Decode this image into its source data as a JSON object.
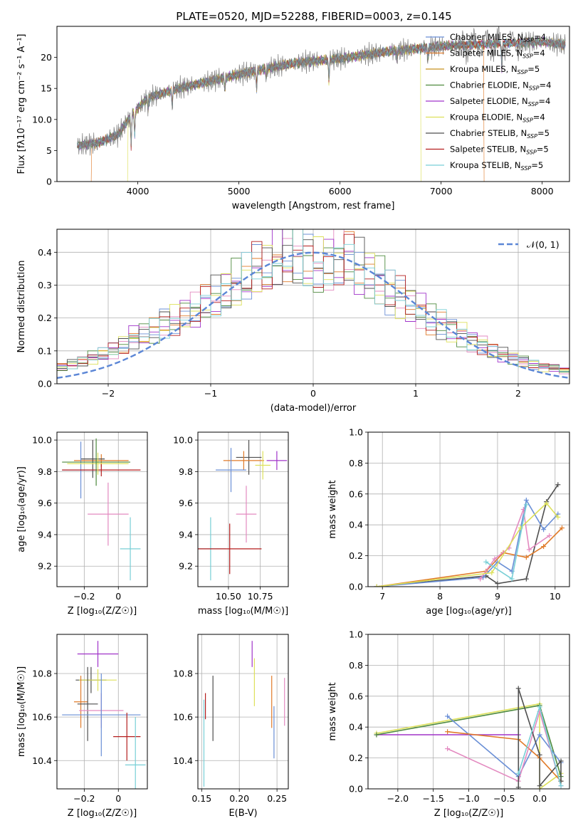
{
  "figure_title": "PLATE=0520, MJD=52288, FIBERID=0003, z=0.145",
  "colors": {
    "Chabrier MILES": "#6a8fd6",
    "Salpeter MILES": "#e07b2a",
    "Kroupa MILES": "#c8901e",
    "Chabrier ELODIE": "#4e8a3e",
    "Salpeter ELODIE": "#a033c9",
    "Kroupa ELODIE": "#dde05a",
    "Chabrier STELIB": "#4f4f4f",
    "Salpeter STELIB": "#b51e1e",
    "Kroupa STELIB": "#78cfd6",
    "pink": "#e38ac0"
  },
  "chart_data": [
    {
      "id": "spectrum",
      "type": "line",
      "xlabel": "wavelength [Angstrom, rest frame]",
      "ylabel": "Flux [fλ10⁻¹⁷ erg cm⁻² s⁻¹ A⁻¹]",
      "xlim": [
        3200,
        8270
      ],
      "ylim": [
        0,
        25
      ],
      "xticks": [
        4000,
        5000,
        6000,
        7000,
        8000
      ],
      "yticks": [
        0,
        5,
        10,
        15,
        20
      ],
      "grid": false,
      "legend_position": "upper right",
      "legend": [
        {
          "name": "Chabrier MILES",
          "nssp": "4"
        },
        {
          "name": "Salpeter MILES",
          "nssp": "4"
        },
        {
          "name": "Kroupa MILES",
          "nssp": "5"
        },
        {
          "name": "Chabrier ELODIE",
          "nssp": "4"
        },
        {
          "name": "Salpeter ELODIE",
          "nssp": "4"
        },
        {
          "name": "Kroupa ELODIE",
          "nssp": "4"
        },
        {
          "name": "Chabrier STELIB",
          "nssp": "5"
        },
        {
          "name": "Salpeter STELIB",
          "nssp": "5"
        },
        {
          "name": "Kroupa STELIB",
          "nssp": "5"
        }
      ],
      "continuum": [
        [
          3400,
          5.8
        ],
        [
          3600,
          6.2
        ],
        [
          3800,
          7.5
        ],
        [
          3950,
          11
        ],
        [
          4100,
          13.5
        ],
        [
          4400,
          15
        ],
        [
          4800,
          16.5
        ],
        [
          5200,
          18
        ],
        [
          5600,
          19.2
        ],
        [
          6000,
          19.8
        ],
        [
          6500,
          21
        ],
        [
          7000,
          21.8
        ],
        [
          7500,
          22.2
        ],
        [
          8000,
          22.5
        ],
        [
          8230,
          22
        ]
      ],
      "model_cutoffs": [
        {
          "series": "Salpeter MILES",
          "x": [
            3540,
            7420
          ]
        },
        {
          "series": "Kroupa ELODIE",
          "x": [
            3900,
            6800
          ]
        }
      ]
    },
    {
      "id": "residual_hist",
      "type": "line",
      "xlabel": "(data-model)/error",
      "ylabel": "Normed distribution",
      "xlim": [
        -2.5,
        2.5
      ],
      "ylim": [
        0,
        0.47
      ],
      "xticks": [
        -2,
        -1,
        0,
        1,
        2
      ],
      "yticks": [
        0.0,
        0.1,
        0.2,
        0.3,
        0.4
      ],
      "grid": true,
      "legend_position": "upper right",
      "reference_label": "𝒩(0, 1)",
      "bin_width": 0.1,
      "example_bins": {
        "x": [
          -2.5,
          -2.4,
          -2.3,
          -2.2,
          -2.1,
          -2.0,
          -1.9,
          -1.8,
          -1.7,
          -1.6,
          -1.5,
          -1.4,
          -1.3,
          -1.2,
          -1.1,
          -1.0,
          -0.9,
          -0.8,
          -0.7,
          -0.6,
          -0.5,
          -0.4,
          -0.3,
          -0.2,
          -0.1,
          0.0,
          0.1,
          0.2,
          0.3,
          0.4,
          0.5,
          0.6,
          0.7,
          0.8,
          0.9,
          1.0,
          1.1,
          1.2,
          1.3,
          1.4,
          1.5,
          1.6,
          1.7,
          1.8,
          1.9,
          2.0,
          2.1,
          2.2,
          2.3,
          2.4
        ],
        "y": [
          0.05,
          0.06,
          0.07,
          0.08,
          0.09,
          0.1,
          0.12,
          0.14,
          0.15,
          0.16,
          0.18,
          0.19,
          0.21,
          0.22,
          0.24,
          0.26,
          0.28,
          0.3,
          0.32,
          0.34,
          0.35,
          0.37,
          0.39,
          0.38,
          0.36,
          0.35,
          0.36,
          0.38,
          0.37,
          0.35,
          0.33,
          0.31,
          0.28,
          0.26,
          0.24,
          0.22,
          0.2,
          0.18,
          0.16,
          0.15,
          0.13,
          0.12,
          0.1,
          0.09,
          0.08,
          0.07,
          0.06,
          0.05,
          0.05,
          0.04
        ]
      }
    },
    {
      "id": "age_vs_Z",
      "type": "scatter",
      "xlabel": "Z [log₁₀(Z/Z☉)]",
      "ylabel": "age  [log₁₀(age/yr)]",
      "xlim": [
        -0.36,
        0.17
      ],
      "ylim": [
        9.07,
        10.05
      ],
      "xticks": [
        -0.2,
        0.0
      ],
      "yticks": [
        9.2,
        9.4,
        9.6,
        9.8,
        10.0
      ],
      "grid": true,
      "errorbars": [
        {
          "series": "Salpeter MILES",
          "x": -0.1,
          "y": 9.87,
          "xerr": 0.16,
          "yerr": 0.04
        },
        {
          "series": "Chabrier STELIB",
          "x": -0.15,
          "y": 9.88,
          "xerr": 0.07,
          "yerr": 0.12
        },
        {
          "series": "Chabrier MILES",
          "x": -0.22,
          "y": 9.81,
          "xerr": 0.11,
          "yerr": 0.18
        },
        {
          "series": "Salpeter STELIB",
          "x": -0.1,
          "y": 9.81,
          "xerr": 0.23,
          "yerr": 0.04
        },
        {
          "series": "Kroupa ELODIE",
          "x": -0.12,
          "y": 9.85,
          "xerr": 0.18,
          "yerr": 0.07
        },
        {
          "series": "Chabrier ELODIE",
          "x": -0.13,
          "y": 9.86,
          "xerr": 0.2,
          "yerr": 0.15
        },
        {
          "series": "Kroupa STELIB",
          "x": 0.07,
          "y": 9.31,
          "xerr": 0.06,
          "yerr": 0.2
        },
        {
          "series": "pink",
          "x": -0.06,
          "y": 9.53,
          "xerr": 0.12,
          "yerr": 0.2
        }
      ]
    },
    {
      "id": "age_vs_mass",
      "type": "scatter",
      "xlabel": "mass [log₁₀(M/M☉)]",
      "ylabel": "",
      "xlim": [
        10.26,
        10.97
      ],
      "ylim": [
        9.07,
        10.05
      ],
      "xticks": [
        10.5,
        10.75
      ],
      "xtick_labels": [
        "10.50",
        "10.75"
      ],
      "yticks": [
        9.2,
        9.4,
        9.6,
        9.8,
        10.0
      ],
      "grid": true,
      "errorbars": [
        {
          "series": "Salpeter ELODIE",
          "x": 10.88,
          "y": 9.87,
          "xerr": 0.08,
          "yerr": 0.06
        },
        {
          "series": "Chabrier STELIB",
          "x": 10.66,
          "y": 9.89,
          "xerr": 0.1,
          "yerr": 0.11
        },
        {
          "series": "Salpeter MILES",
          "x": 10.62,
          "y": 9.87,
          "xerr": 0.16,
          "yerr": 0.06
        },
        {
          "series": "Kroupa ELODIE",
          "x": 10.77,
          "y": 9.84,
          "xerr": 0.06,
          "yerr": 0.09
        },
        {
          "series": "Chabrier MILES",
          "x": 10.52,
          "y": 9.81,
          "xerr": 0.12,
          "yerr": 0.14
        },
        {
          "series": "Kroupa STELIB",
          "x": 10.36,
          "y": 9.31,
          "xerr": 0.12,
          "yerr": 0.2
        },
        {
          "series": "Salpeter STELIB",
          "x": 10.51,
          "y": 9.31,
          "xerr": 0.25,
          "yerr": 0.16
        },
        {
          "series": "pink",
          "x": 10.64,
          "y": 9.53,
          "xerr": 0.08,
          "yerr": 0.18
        }
      ]
    },
    {
      "id": "mass_weight_vs_age",
      "type": "line",
      "xlabel": "age  [log₁₀(age/yr)]",
      "ylabel": "mass weight",
      "xlim": [
        6.75,
        10.25
      ],
      "ylim": [
        0,
        1
      ],
      "xticks": [
        7,
        8,
        9,
        10
      ],
      "yticks": [
        0.0,
        0.2,
        0.4,
        0.6,
        0.8,
        1.0
      ],
      "grid": true,
      "series": [
        {
          "name": "Chabrier STELIB",
          "x": [
            6.9,
            8.8,
            9.0,
            9.5,
            9.85,
            10.05
          ],
          "y": [
            0.0,
            0.07,
            0.02,
            0.05,
            0.55,
            0.66
          ]
        },
        {
          "name": "Salpeter MILES",
          "x": [
            6.9,
            8.8,
            9.1,
            9.5,
            9.8,
            10.12
          ],
          "y": [
            0.0,
            0.1,
            0.22,
            0.19,
            0.26,
            0.38
          ]
        },
        {
          "name": "Chabrier MILES",
          "x": [
            6.9,
            8.75,
            9.0,
            9.25,
            9.5,
            9.8,
            10.05
          ],
          "y": [
            0.0,
            0.06,
            0.16,
            0.1,
            0.56,
            0.37,
            0.47
          ]
        },
        {
          "name": "pink",
          "x": [
            8.7,
            8.95,
            9.2,
            9.45,
            9.55,
            9.9
          ],
          "y": [
            0.05,
            0.18,
            0.25,
            0.5,
            0.24,
            0.33
          ]
        },
        {
          "name": "Kroupa ELODIE",
          "x": [
            6.9,
            8.9,
            9.4,
            9.85,
            10.05
          ],
          "y": [
            0.0,
            0.09,
            0.38,
            0.54,
            0.45
          ]
        },
        {
          "name": "Kroupa STELIB",
          "x": [
            8.8,
            9.25,
            9.5
          ],
          "y": [
            0.16,
            0.05,
            0.53
          ]
        }
      ]
    },
    {
      "id": "mass_vs_Z",
      "type": "scatter",
      "xlabel": "Z [log₁₀(Z/Z☉)]",
      "ylabel": "mass [log₁₀(M/M☉)]",
      "xlim": [
        -0.36,
        0.17
      ],
      "ylim": [
        10.27,
        10.98
      ],
      "xticks": [
        -0.2,
        0.0
      ],
      "yticks": [
        10.4,
        10.6,
        10.8
      ],
      "grid": true,
      "errorbars": [
        {
          "series": "Salpeter ELODIE",
          "x": -0.12,
          "y": 10.89,
          "xerr": 0.12,
          "yerr": 0.06
        },
        {
          "series": "Chabrier STELIB",
          "x": -0.16,
          "y": 10.77,
          "xerr": 0.09,
          "yerr": 0.06
        },
        {
          "series": "Kroupa ELODIE",
          "x": -0.12,
          "y": 10.77,
          "xerr": 0.11,
          "yerr": 0.05
        },
        {
          "series": "Salpeter MILES",
          "x": -0.22,
          "y": 10.67,
          "xerr": 0.04,
          "yerr": 0.12
        },
        {
          "series": "Chabrier STELIB",
          "x": -0.18,
          "y": 10.66,
          "xerr": 0.06,
          "yerr": 0.17
        },
        {
          "series": "pink",
          "x": -0.1,
          "y": 10.63,
          "xerr": 0.13,
          "yerr": 0.08
        },
        {
          "series": "Chabrier MILES",
          "x": -0.1,
          "y": 10.61,
          "xerr": 0.23,
          "yerr": 0.19
        },
        {
          "series": "Salpeter STELIB",
          "x": 0.05,
          "y": 10.51,
          "xerr": 0.08,
          "yerr": 0.11
        },
        {
          "series": "Kroupa STELIB",
          "x": 0.1,
          "y": 10.38,
          "xerr": 0.06,
          "yerr": 0.22
        }
      ]
    },
    {
      "id": "mass_vs_ebv",
      "type": "scatter",
      "xlabel": "E(B-V)",
      "ylabel": "",
      "xlim": [
        0.145,
        0.265
      ],
      "ylim": [
        10.27,
        10.98
      ],
      "xticks": [
        0.15,
        0.2,
        0.25
      ],
      "xtick_labels": [
        "0.15",
        "0.20",
        "0.25"
      ],
      "yticks": [
        10.4,
        10.6,
        10.8
      ],
      "grid": true,
      "errorbars": [
        {
          "series": "Salpeter ELODIE",
          "x": 0.217,
          "y": 10.89,
          "xerr": 0,
          "yerr": 0.06
        },
        {
          "series": "Kroupa ELODIE",
          "x": 0.22,
          "y": 10.76,
          "xerr": 0,
          "yerr": 0.11
        },
        {
          "series": "Chabrier STELIB",
          "x": 0.165,
          "y": 10.64,
          "xerr": 0,
          "yerr": 0.15
        },
        {
          "series": "Salpeter STELIB",
          "x": 0.155,
          "y": 10.65,
          "xerr": 0,
          "yerr": 0.06
        },
        {
          "series": "pink",
          "x": 0.26,
          "y": 10.67,
          "xerr": 0,
          "yerr": 0.11
        },
        {
          "series": "Salpeter MILES",
          "x": 0.243,
          "y": 10.67,
          "xerr": 0,
          "yerr": 0.12
        },
        {
          "series": "Chabrier MILES",
          "x": 0.246,
          "y": 10.53,
          "xerr": 0,
          "yerr": 0.12
        },
        {
          "series": "Kroupa STELIB",
          "x": 0.153,
          "y": 10.48,
          "xerr": 0,
          "yerr": 0.2
        }
      ]
    },
    {
      "id": "mass_weight_vs_Z",
      "type": "line",
      "xlabel": "Z [log₁₀(Z/Z☉)]",
      "ylabel": "mass weight",
      "xlim": [
        -2.42,
        0.42
      ],
      "ylim": [
        0,
        1
      ],
      "xticks": [
        -2.0,
        -1.5,
        -1.0,
        -0.5,
        0.0
      ],
      "xtick_labels": [
        "−2.0",
        "−1.5",
        "−1.0",
        "−0.5",
        "0.0"
      ],
      "yticks": [
        0.0,
        0.2,
        0.4,
        0.6,
        0.8,
        1.0
      ],
      "grid": true,
      "series": [
        {
          "name": "Salpeter ELODIE",
          "x": [
            -2.3,
            -0.3
          ],
          "y": [
            0.35,
            0.35
          ]
        },
        {
          "name": "Kroupa ELODIE",
          "x": [
            -2.3,
            0.0,
            0.0,
            0.3
          ],
          "y": [
            0.36,
            0.55,
            0.0,
            0.1
          ]
        },
        {
          "name": "Chabrier ELODIE",
          "x": [
            -2.3,
            0.0,
            0.3
          ],
          "y": [
            0.35,
            0.54,
            0.08
          ]
        },
        {
          "name": "Chabrier MILES",
          "x": [
            -1.3,
            -0.3,
            0.0,
            0.3
          ],
          "y": [
            0.47,
            0.08,
            0.35,
            0.17
          ]
        },
        {
          "name": "Salpeter MILES",
          "x": [
            -1.3,
            -0.3,
            0.0,
            0.3
          ],
          "y": [
            0.37,
            0.32,
            0.2,
            0.05
          ]
        },
        {
          "name": "pink",
          "x": [
            -1.3,
            -0.3,
            0.0,
            0.3
          ],
          "y": [
            0.26,
            0.05,
            0.5,
            0.02
          ]
        },
        {
          "name": "Chabrier STELIB",
          "x": [
            -0.3,
            -0.3,
            0.0,
            0.0,
            0.3,
            0.3
          ],
          "y": [
            0.01,
            0.65,
            0.22,
            0.02,
            0.18,
            0.05
          ]
        },
        {
          "name": "Kroupa STELIB",
          "x": [
            -0.3,
            0.0,
            0.3
          ],
          "y": [
            0.1,
            0.53,
            0.02
          ]
        }
      ]
    }
  ]
}
